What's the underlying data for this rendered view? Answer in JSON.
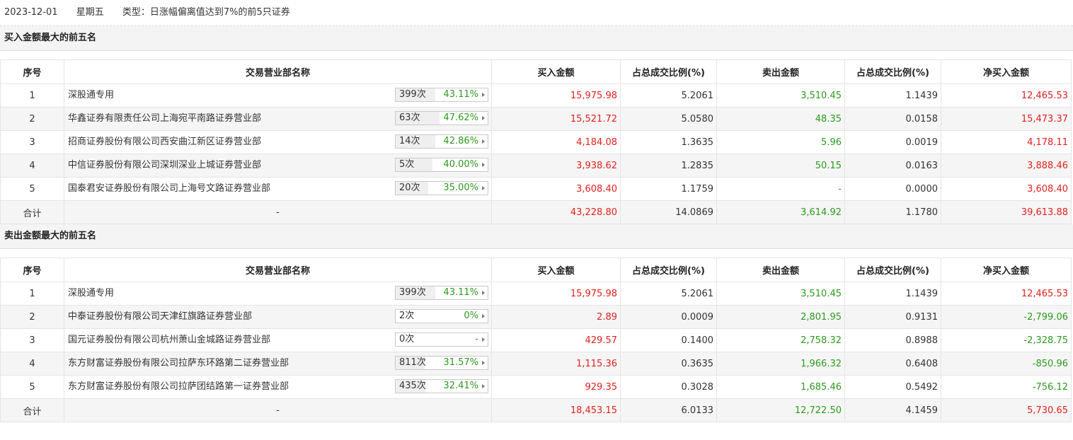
{
  "header": {
    "date": "2023-12-01",
    "weekday": "星期五",
    "type": "类型：日涨幅偏离值达到7%的前5只证券"
  },
  "columns": [
    "序号",
    "交易营业部名称",
    "买入金额",
    "占总成交比例(%)",
    "卖出金额",
    "占总成交比例(%)",
    "净买入金额"
  ],
  "buy_section": {
    "title": "买入金额最大的前五名",
    "rows": [
      {
        "no": "1",
        "name": "深股通专用",
        "count": "399次",
        "pct": "43.11%",
        "buy": "15,975.98",
        "buy_ratio": "5.2061",
        "sell": "3,510.45",
        "sell_ratio": "1.1439",
        "net": "12,465.53"
      },
      {
        "no": "2",
        "name": "华鑫证券有限责任公司上海宛平南路证券营业部",
        "count": "63次",
        "pct": "47.62%",
        "buy": "15,521.72",
        "buy_ratio": "5.0580",
        "sell": "48.35",
        "sell_ratio": "0.0158",
        "net": "15,473.37"
      },
      {
        "no": "3",
        "name": "招商证券股份有限公司西安曲江新区证券营业部",
        "count": "14次",
        "pct": "42.86%",
        "buy": "4,184.08",
        "buy_ratio": "1.3635",
        "sell": "5.96",
        "sell_ratio": "0.0019",
        "net": "4,178.11"
      },
      {
        "no": "4",
        "name": "中信证券股份有限公司深圳深业上城证券营业部",
        "count": "5次",
        "pct": "40.00%",
        "buy": "3,938.62",
        "buy_ratio": "1.2835",
        "sell": "50.15",
        "sell_ratio": "0.0163",
        "net": "3,888.46"
      },
      {
        "no": "5",
        "name": "国泰君安证券股份有限公司上海号文路证券营业部",
        "count": "20次",
        "pct": "35.00%",
        "buy": "3,608.40",
        "buy_ratio": "1.1759",
        "sell": "-",
        "sell_ratio": "0.0000",
        "net": "3,608.40"
      }
    ],
    "total": {
      "label": "合计",
      "name": "-",
      "buy": "43,228.80",
      "buy_ratio": "14.0869",
      "sell": "3,614.92",
      "sell_ratio": "1.1780",
      "net": "39,613.88"
    }
  },
  "sell_section": {
    "title": "卖出金额最大的前五名",
    "rows": [
      {
        "no": "1",
        "name": "深股通专用",
        "count": "399次",
        "pct": "43.11%",
        "buy": "15,975.98",
        "buy_ratio": "5.2061",
        "sell": "3,510.45",
        "sell_ratio": "1.1439",
        "net": "12,465.53"
      },
      {
        "no": "2",
        "name": "中泰证券股份有限公司天津红旗路证券营业部",
        "count": "2次",
        "pct": "0%",
        "buy": "2.89",
        "buy_ratio": "0.0009",
        "sell": "2,801.95",
        "sell_ratio": "0.9131",
        "net": "-2,799.06"
      },
      {
        "no": "3",
        "name": "国元证券股份有限公司杭州萧山金城路证券营业部",
        "count": "0次",
        "pct": "-",
        "buy": "429.57",
        "buy_ratio": "0.1400",
        "sell": "2,758.32",
        "sell_ratio": "0.8988",
        "net": "-2,328.75"
      },
      {
        "no": "4",
        "name": "东方财富证券股份有限公司拉萨东环路第二证券营业部",
        "count": "811次",
        "pct": "31.57%",
        "buy": "1,115.36",
        "buy_ratio": "0.3635",
        "sell": "1,966.32",
        "sell_ratio": "0.6408",
        "net": "-850.96"
      },
      {
        "no": "5",
        "name": "东方财富证券股份有限公司拉萨团结路第一证券营业部",
        "count": "435次",
        "pct": "32.41%",
        "buy": "929.35",
        "buy_ratio": "0.3028",
        "sell": "1,685.46",
        "sell_ratio": "0.5492",
        "net": "-756.12"
      }
    ],
    "total": {
      "label": "合计",
      "name": "-",
      "buy": "18,453.15",
      "buy_ratio": "6.0133",
      "sell": "12,722.50",
      "sell_ratio": "4.1459",
      "net": "5,730.65"
    }
  },
  "colors": {
    "positive": "#e0211d",
    "negative": "#2c9a1d",
    "stripe": "#f5f5f5"
  },
  "icons": {
    "badge_arrow": "caret-right-icon"
  }
}
